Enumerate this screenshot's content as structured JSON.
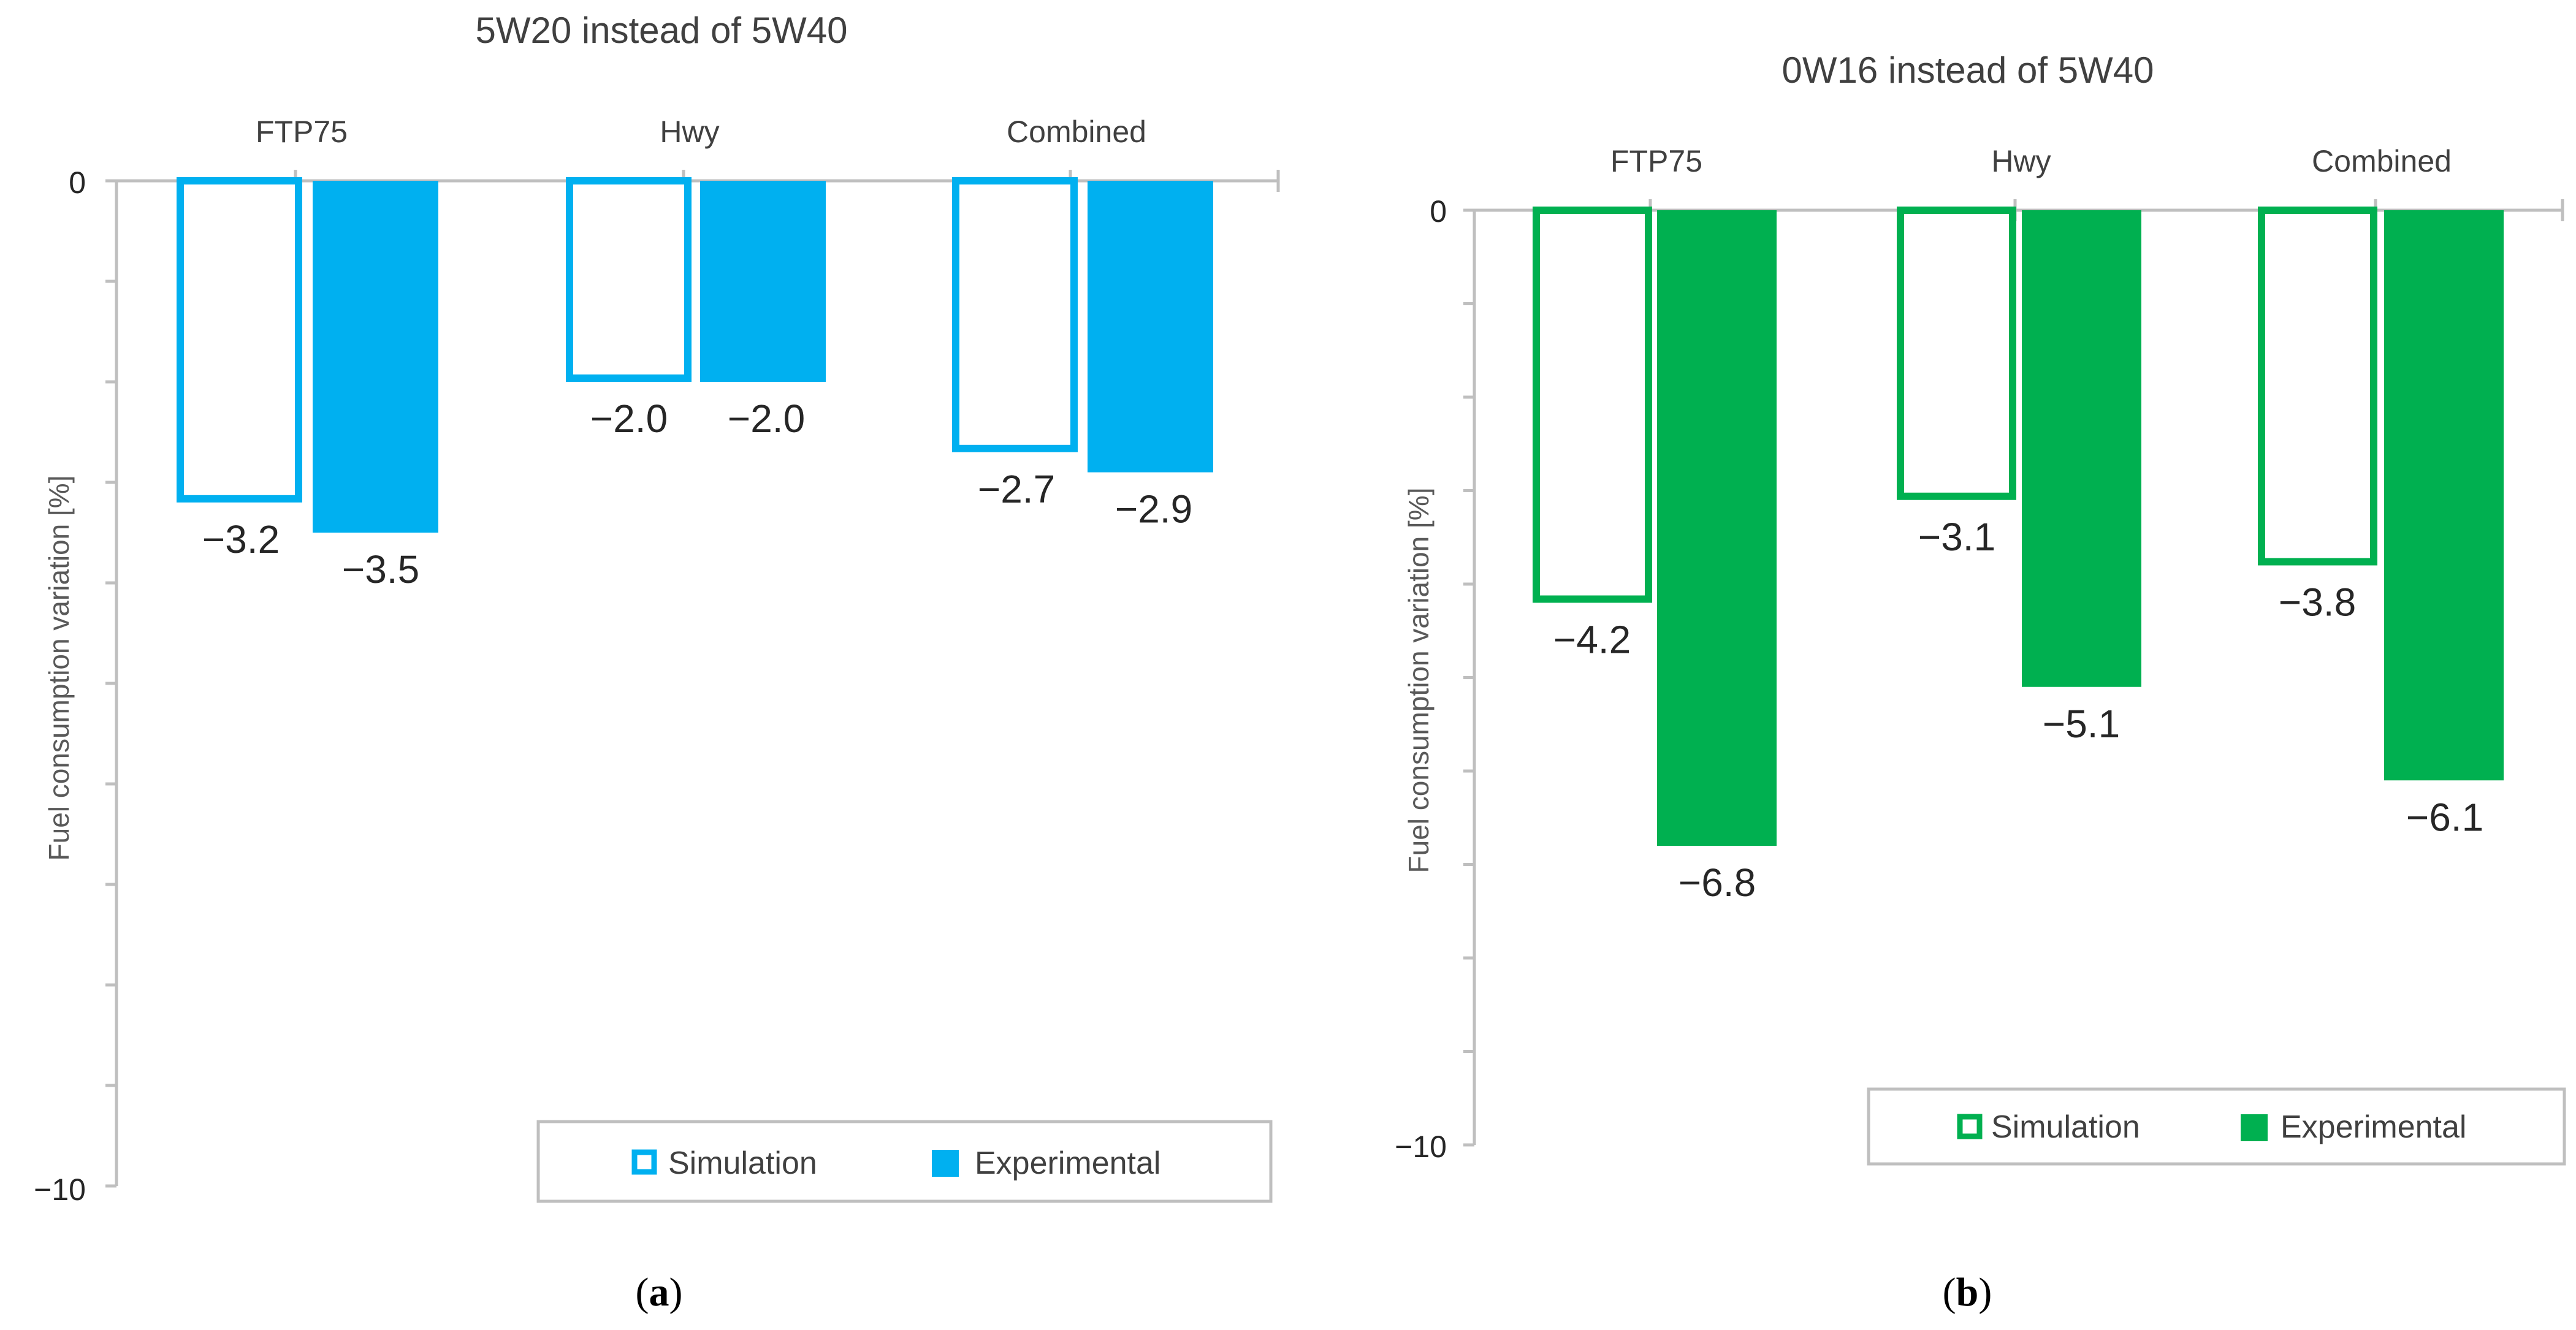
{
  "chart_data": [
    {
      "type": "bar",
      "panel": "(a)",
      "title": "5W20 instead of 5W40",
      "ylabel": "Fuel consumption variation [%]",
      "categories": [
        "FTP75",
        "Hwy",
        "Combined"
      ],
      "series": [
        {
          "name": "Simulation",
          "values": [
            -3.2,
            -2.0,
            -2.7
          ],
          "labels": [
            "−3.2",
            "−2.0",
            "−2.7"
          ],
          "style": "outline"
        },
        {
          "name": "Experimental",
          "values": [
            -3.5,
            -2.0,
            -2.9
          ],
          "labels": [
            "−3.5",
            "−2.0",
            "−2.9"
          ],
          "style": "filled"
        }
      ],
      "ylim": [
        -10,
        0
      ],
      "ytick_labels": {
        "top": "0",
        "bottom": "−10"
      },
      "color": "#00B0F0",
      "legend_position": "bottom-right"
    },
    {
      "type": "bar",
      "panel": "(b)",
      "title": "0W16 instead of 5W40",
      "ylabel": "Fuel consumption variation [%]",
      "categories": [
        "FTP75",
        "Hwy",
        "Combined"
      ],
      "series": [
        {
          "name": "Simulation",
          "values": [
            -4.2,
            -3.1,
            -3.8
          ],
          "labels": [
            "−4.2",
            "−3.1",
            "−3.8"
          ],
          "style": "outline"
        },
        {
          "name": "Experimental",
          "values": [
            -6.8,
            -5.1,
            -6.1
          ],
          "labels": [
            "−6.8",
            "−5.1",
            "−6.1"
          ],
          "style": "filled"
        }
      ],
      "ylim": [
        -10,
        0
      ],
      "ytick_labels": {
        "top": "0",
        "bottom": "−10"
      },
      "color": "#00B050",
      "legend_position": "bottom-right"
    }
  ],
  "colors": {
    "axis": "#BFBFBF",
    "text": "#404040"
  }
}
